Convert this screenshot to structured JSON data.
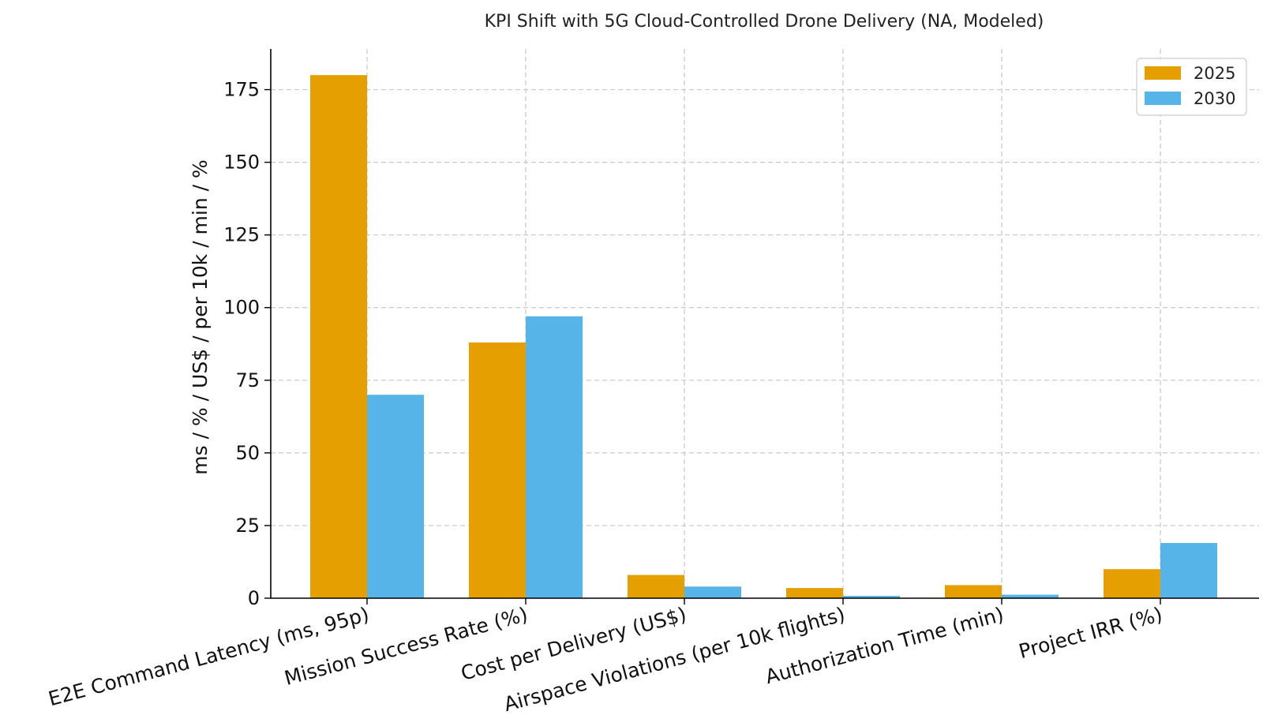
{
  "chart_data": {
    "type": "bar",
    "title": "KPI Shift with 5G Cloud-Controlled Drone Delivery (NA, Modeled)",
    "xlabel": "",
    "ylabel": "ms / % / US$ / per 10k / min / %",
    "categories": [
      "E2E Command Latency (ms, 95p)",
      "Mission Success Rate (%)",
      "Cost per Delivery (US$)",
      "Airspace Violations (per 10k flights)",
      "Authorization Time (min)",
      "Project IRR (%)"
    ],
    "series": [
      {
        "name": "2025",
        "color": "#E69F00",
        "values": [
          180,
          88,
          8,
          3.5,
          4.5,
          10
        ]
      },
      {
        "name": "2030",
        "color": "#56B4E9",
        "values": [
          70,
          97,
          4,
          0.8,
          1.2,
          19
        ]
      }
    ],
    "ylim": [
      0,
      189
    ],
    "yticks": [
      0,
      25,
      50,
      75,
      100,
      125,
      150,
      175
    ],
    "grid": true,
    "legend_position": "top-right"
  }
}
